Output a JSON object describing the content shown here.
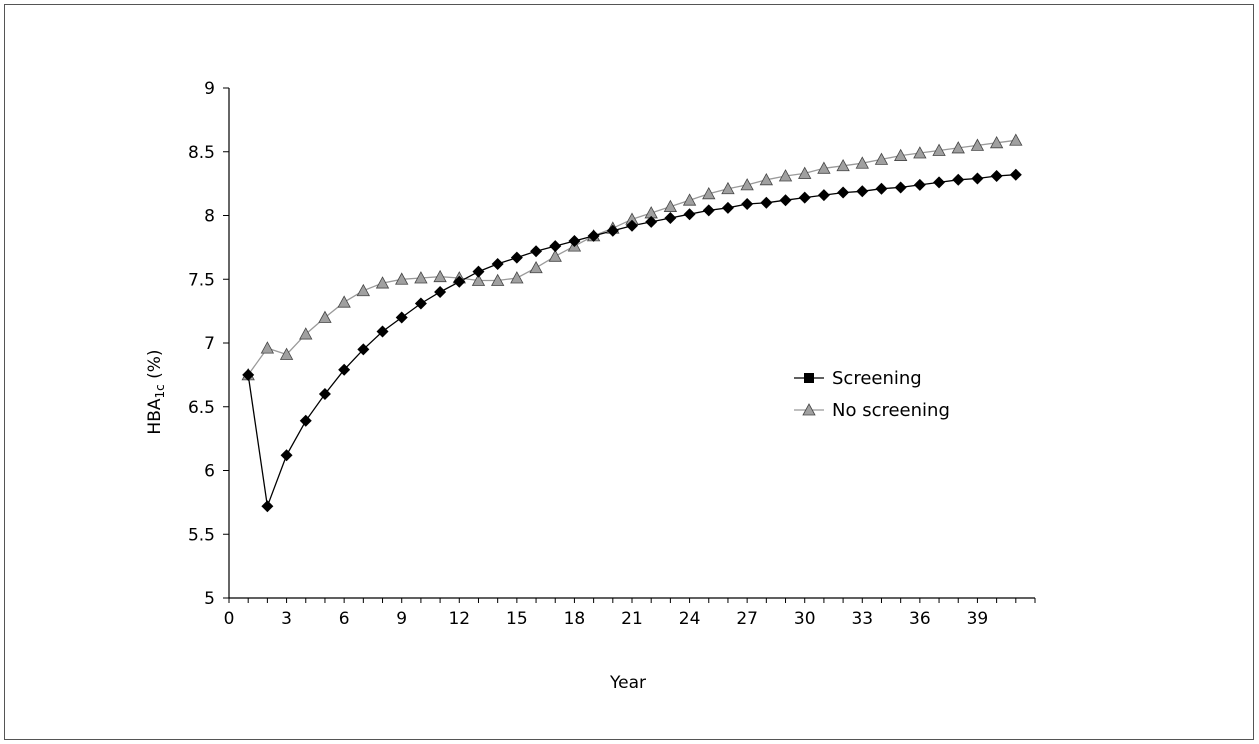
{
  "chart_data": {
    "type": "line",
    "title": "",
    "xlabel": "Year",
    "ylabel_main": "HBA",
    "ylabel_sub": "1c",
    "ylabel_suffix": " (%)",
    "xlim": [
      0,
      42
    ],
    "ylim": [
      5,
      9
    ],
    "xticks": [
      0,
      3,
      6,
      9,
      12,
      15,
      18,
      21,
      24,
      27,
      30,
      33,
      36,
      39
    ],
    "yticks": [
      5,
      5.5,
      6,
      6.5,
      7,
      7.5,
      8,
      8.5,
      9
    ],
    "grid": false,
    "legend_position": "right-middle",
    "series": [
      {
        "name": "Screening",
        "marker": "diamond",
        "color": "#000000",
        "x": [
          1,
          2,
          3,
          4,
          5,
          6,
          7,
          8,
          9,
          10,
          11,
          12,
          13,
          14,
          15,
          16,
          17,
          18,
          19,
          20,
          21,
          22,
          23,
          24,
          25,
          26,
          27,
          28,
          29,
          30,
          31,
          32,
          33,
          34,
          35,
          36,
          37,
          38,
          39,
          40,
          41
        ],
        "values": [
          6.75,
          5.72,
          6.12,
          6.39,
          6.6,
          6.79,
          6.95,
          7.09,
          7.2,
          7.31,
          7.4,
          7.48,
          7.56,
          7.62,
          7.67,
          7.72,
          7.76,
          7.8,
          7.84,
          7.88,
          7.92,
          7.95,
          7.98,
          8.01,
          8.04,
          8.06,
          8.09,
          8.1,
          8.12,
          8.14,
          8.16,
          8.18,
          8.19,
          8.21,
          8.22,
          8.24,
          8.26,
          8.28,
          8.29,
          8.31,
          8.32
        ]
      },
      {
        "name": "No screening",
        "marker": "triangle",
        "color": "#999999",
        "x": [
          1,
          2,
          3,
          4,
          5,
          6,
          7,
          8,
          9,
          10,
          11,
          12,
          13,
          14,
          15,
          16,
          17,
          18,
          19,
          20,
          21,
          22,
          23,
          24,
          25,
          26,
          27,
          28,
          29,
          30,
          31,
          32,
          33,
          34,
          35,
          36,
          37,
          38,
          39,
          40,
          41
        ],
        "values": [
          6.75,
          6.96,
          6.91,
          7.07,
          7.2,
          7.32,
          7.41,
          7.47,
          7.5,
          7.51,
          7.52,
          7.51,
          7.49,
          7.49,
          7.51,
          7.59,
          7.68,
          7.76,
          7.84,
          7.9,
          7.97,
          8.02,
          8.07,
          8.12,
          8.17,
          8.21,
          8.24,
          8.28,
          8.31,
          8.33,
          8.37,
          8.39,
          8.41,
          8.44,
          8.47,
          8.49,
          8.51,
          8.53,
          8.55,
          8.57,
          8.59
        ]
      }
    ]
  }
}
